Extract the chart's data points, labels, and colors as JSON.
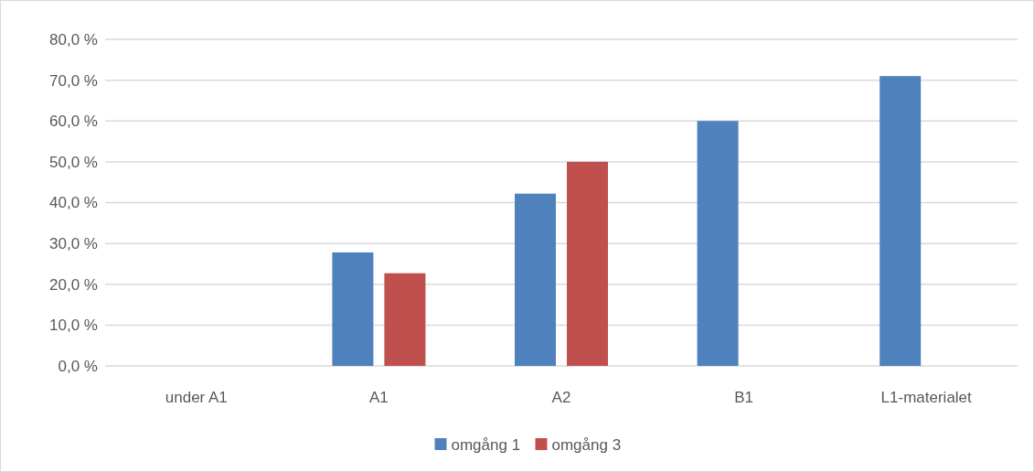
{
  "chart_data": {
    "type": "bar",
    "categories": [
      "under A1",
      "A1",
      "A2",
      "B1",
      "L1-materialet"
    ],
    "series": [
      {
        "name": "omgång 1",
        "color": "#4f81bd",
        "values": [
          null,
          27.8,
          42.2,
          60.0,
          71.0
        ]
      },
      {
        "name": "omgång 3",
        "color": "#c0504d",
        "values": [
          null,
          22.7,
          50.0,
          null,
          null
        ]
      }
    ],
    "ylim": [
      0,
      80
    ],
    "yticks": [
      {
        "value": 0,
        "label": "0,0 %"
      },
      {
        "value": 10,
        "label": "10,0 %"
      },
      {
        "value": 20,
        "label": "20,0 %"
      },
      {
        "value": 30,
        "label": "30,0 %"
      },
      {
        "value": 40,
        "label": "40,0 %"
      },
      {
        "value": 50,
        "label": "50,0 %"
      },
      {
        "value": 60,
        "label": "60,0 %"
      },
      {
        "value": 70,
        "label": "70,0 %"
      },
      {
        "value": 80,
        "label": "80,0 %"
      }
    ],
    "grid": "y",
    "legend": "bottom"
  }
}
